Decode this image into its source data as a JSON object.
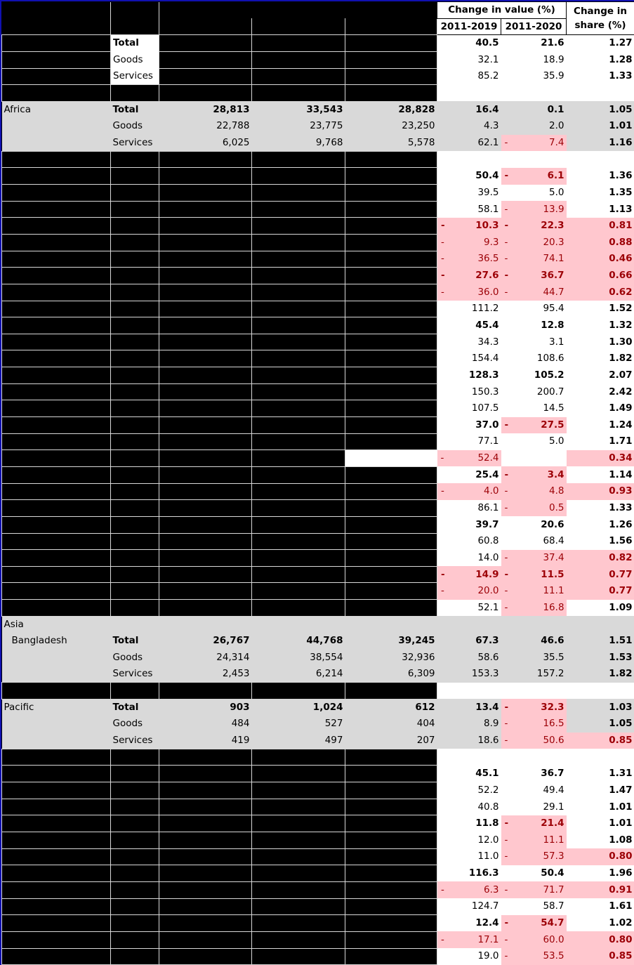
{
  "header": {
    "change_in_value": "Change in value (%)",
    "period_1": "2011-2019",
    "period_2": "2011-2020",
    "change_in_share": "Change in share (%)"
  },
  "colors": {
    "negative_fill": "#ffc7ce",
    "negative_text": "#9c0006",
    "highlight_fill": "#d9d9d9",
    "redacted_fill": "#000000",
    "border": "#1010b0"
  },
  "rows": [
    {
      "region": "",
      "type": "Total",
      "v1": "",
      "v2": "",
      "v3": "",
      "c19": "40.5",
      "c20": "21.6",
      "share": "1.27",
      "bold": true,
      "style": "top"
    },
    {
      "region": "",
      "type": "Goods",
      "v1": "",
      "v2": "",
      "v3": "",
      "c19": "32.1",
      "c20": "18.9",
      "share": "1.28",
      "style": "top"
    },
    {
      "region": "",
      "type": "Services",
      "v1": "",
      "v2": "",
      "v3": "",
      "c19": "85.2",
      "c20": "35.9",
      "share": "1.33",
      "style": "top"
    },
    {
      "style": "blank"
    },
    {
      "region": "Africa",
      "type": "Total",
      "v1": "28,813",
      "v2": "33,543",
      "v3": "28,828",
      "c19": "16.4",
      "c20": "0.1",
      "share": "1.05",
      "bold": true,
      "style": "grey"
    },
    {
      "region": "",
      "type": "Goods",
      "v1": "22,788",
      "v2": "23,775",
      "v3": "23,250",
      "c19": "4.3",
      "c20": "2.0",
      "share": "1.01",
      "style": "grey"
    },
    {
      "region": "",
      "type": "Services",
      "v1": "6,025",
      "v2": "9,768",
      "v3": "5,578",
      "c19": "62.1",
      "c20": "- 7.4",
      "share": "1.16",
      "style": "grey"
    },
    {
      "style": "blank"
    },
    {
      "c19": "50.4",
      "c20": "- 6.1",
      "share": "1.36",
      "bold": true
    },
    {
      "c19": "39.5",
      "c20": "5.0",
      "share": "1.35"
    },
    {
      "c19": "58.1",
      "c20": "- 13.9",
      "share": "1.13"
    },
    {
      "c19": "- 10.3",
      "c20": "- 22.3",
      "share": "0.81",
      "bold": true
    },
    {
      "c19": "- 9.3",
      "c20": "- 20.3",
      "share": "0.88"
    },
    {
      "c19": "- 36.5",
      "c20": "- 74.1",
      "share": "0.46"
    },
    {
      "c19": "- 27.6",
      "c20": "- 36.7",
      "share": "0.66",
      "bold": true
    },
    {
      "c19": "- 36.0",
      "c20": "- 44.7",
      "share": "0.62"
    },
    {
      "c19": "111.2",
      "c20": "95.4",
      "share": "1.52"
    },
    {
      "c19": "45.4",
      "c20": "12.8",
      "share": "1.32",
      "bold": true
    },
    {
      "c19": "34.3",
      "c20": "3.1",
      "share": "1.30"
    },
    {
      "c19": "154.4",
      "c20": "108.6",
      "share": "1.82"
    },
    {
      "c19": "128.3",
      "c20": "105.2",
      "share": "2.07",
      "bold": true
    },
    {
      "c19": "150.3",
      "c20": "200.7",
      "share": "2.42"
    },
    {
      "c19": "107.5",
      "c20": "14.5",
      "share": "1.49"
    },
    {
      "c19": "37.0",
      "c20": "- 27.5",
      "share": "1.24",
      "bold": true
    },
    {
      "c19": "77.1",
      "c20": "5.0",
      "share": "1.71"
    },
    {
      "c19": "- 52.4",
      "c20": "",
      "share": "0.34",
      "v3white": true,
      "sharepink": true
    },
    {
      "c19": "25.4",
      "c20": "- 3.4",
      "share": "1.14",
      "bold": true
    },
    {
      "c19": "- 4.0",
      "c20": "- 4.8",
      "share": "0.93"
    },
    {
      "c19": "86.1",
      "c20": "- 0.5",
      "share": "1.33"
    },
    {
      "c19": "39.7",
      "c20": "20.6",
      "share": "1.26",
      "bold": true
    },
    {
      "c19": "60.8",
      "c20": "68.4",
      "share": "1.56"
    },
    {
      "c19": "14.0",
      "c20": "- 37.4",
      "share": "0.82"
    },
    {
      "c19": "- 14.9",
      "c20": "- 11.5",
      "share": "0.77",
      "bold": true
    },
    {
      "c19": "- 20.0",
      "c20": "- 11.1",
      "share": "0.77"
    },
    {
      "c19": "52.1",
      "c20": "- 16.8",
      "share": "1.09"
    },
    {
      "region": "Asia",
      "style": "grey-empty"
    },
    {
      "region": "Bangladesh",
      "type": "Total",
      "v1": "26,767",
      "v2": "44,768",
      "v3": "39,245",
      "c19": "67.3",
      "c20": "46.6",
      "share": "1.51",
      "bold": true,
      "style": "grey",
      "indent": true
    },
    {
      "region": "",
      "type": "Goods",
      "v1": "24,314",
      "v2": "38,554",
      "v3": "32,936",
      "c19": "58.6",
      "c20": "35.5",
      "share": "1.53",
      "style": "grey"
    },
    {
      "region": "",
      "type": "Services",
      "v1": "2,453",
      "v2": "6,214",
      "v3": "6,309",
      "c19": "153.3",
      "c20": "157.2",
      "share": "1.82",
      "style": "grey"
    },
    {
      "style": "blank"
    },
    {
      "region": "Pacific",
      "type": "Total",
      "v1": "903",
      "v2": "1,024",
      "v3": "612",
      "c19": "13.4",
      "c20": "- 32.3",
      "share": "1.03",
      "bold": true,
      "style": "grey"
    },
    {
      "region": "",
      "type": "Goods",
      "v1": "484",
      "v2": "527",
      "v3": "404",
      "c19": "8.9",
      "c20": "- 16.5",
      "share": "1.05",
      "style": "grey"
    },
    {
      "region": "",
      "type": "Services",
      "v1": "419",
      "v2": "497",
      "v3": "207",
      "c19": "18.6",
      "c20": "- 50.6",
      "share": "0.85",
      "style": "grey"
    },
    {
      "style": "blank"
    },
    {
      "c19": "45.1",
      "c20": "36.7",
      "share": "1.31",
      "bold": true
    },
    {
      "c19": "52.2",
      "c20": "49.4",
      "share": "1.47"
    },
    {
      "c19": "40.8",
      "c20": "29.1",
      "share": "1.01"
    },
    {
      "c19": "11.8",
      "c20": "- 21.4",
      "share": "1.01",
      "bold": true
    },
    {
      "c19": "12.0",
      "c20": "- 11.1",
      "share": "1.08"
    },
    {
      "c19": "11.0",
      "c20": "- 57.3",
      "share": "0.80"
    },
    {
      "c19": "116.3",
      "c20": "50.4",
      "share": "1.96",
      "bold": true
    },
    {
      "c19": "- 6.3",
      "c20": "- 71.7",
      "share": "0.91"
    },
    {
      "c19": "124.7",
      "c20": "58.7",
      "share": "1.61"
    },
    {
      "c19": "12.4",
      "c20": "- 54.7",
      "share": "1.02",
      "bold": true
    },
    {
      "c19": "- 17.1",
      "c20": "- 60.0",
      "share": "0.80"
    },
    {
      "c19": "19.0",
      "c20": "- 53.5",
      "share": "0.85"
    }
  ]
}
